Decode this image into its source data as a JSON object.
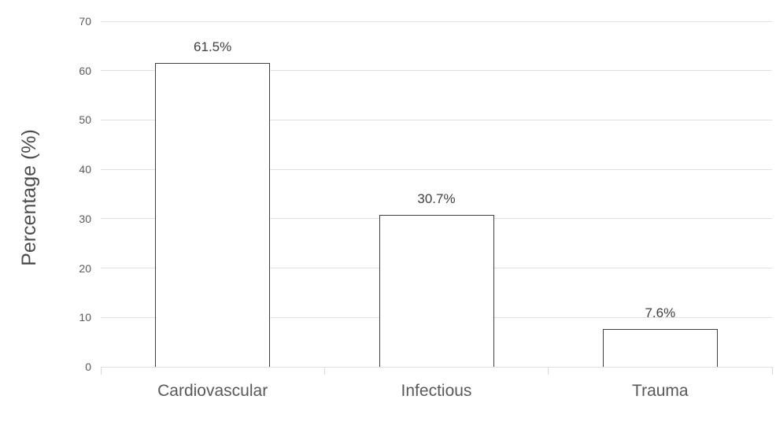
{
  "chart_data": {
    "type": "bar",
    "categories": [
      "Cardiovascular",
      "Infectious",
      "Trauma"
    ],
    "values": [
      61.5,
      30.7,
      7.6
    ],
    "data_labels": [
      "61.5%",
      "30.7%",
      "7.6%"
    ],
    "xlabel": "",
    "ylabel": "Percentage (%)",
    "ylim": [
      0,
      70
    ],
    "ytick_step": 10,
    "ytick_labels": [
      "0",
      "10",
      "20",
      "30",
      "40",
      "50",
      "60",
      "70"
    ],
    "grid": true,
    "legend": "none",
    "colors": {
      "background": "#ffffff",
      "bar_fill": "#ffffff",
      "bar_border": "#404040",
      "gridline": "#e0e0e0",
      "axis_text": "#595959",
      "data_label_text": "#404040"
    }
  }
}
